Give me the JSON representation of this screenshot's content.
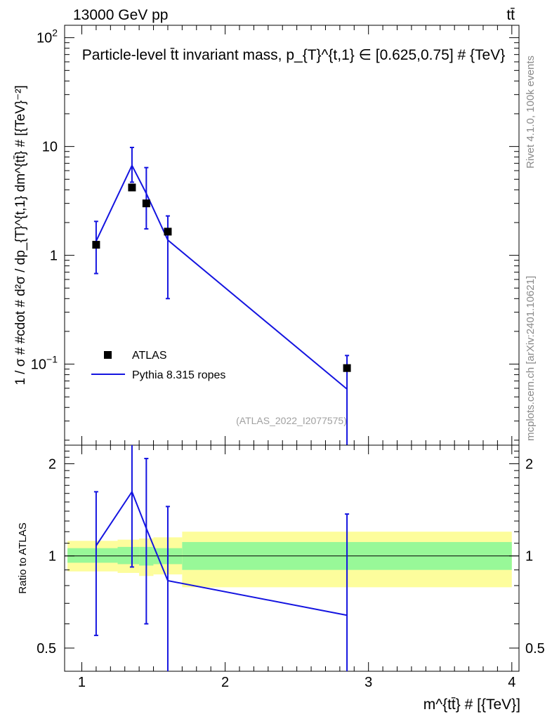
{
  "header": {
    "energy_label": "13000 GeV pp",
    "process_label": "tt̄"
  },
  "side_labels": {
    "rivet": "Rivet 4.1.0,  100k events",
    "mcplots": "mcplots.cern.ch [arXiv:2401.10621]"
  },
  "chart_data": [
    {
      "type": "scatter",
      "panel": "main",
      "title": "Particle-level t̄t invariant mass, p_{T}^{t,1} ∈ [0.625,0.75] # {TeV}",
      "xlabel": "m^{tt̄} # [{TeV}]",
      "ylabel": "1 / σ # #cdot # d²σ / dp_{T}^{t,1} dm^{tt̄} # [{TeV}⁻²]",
      "xlim": [
        0.88,
        4.05
      ],
      "ylim": [
        0.018,
        130
      ],
      "yscale": "log",
      "y_ticks": [
        {
          "value": 0.1,
          "base": "10",
          "exp": "−1"
        },
        {
          "value": 1,
          "base": "1",
          "exp": ""
        },
        {
          "value": 10,
          "base": "10",
          "exp": ""
        },
        {
          "value": 100,
          "base": "10",
          "exp": "2"
        }
      ],
      "watermark": "(ATLAS_2022_I2077575)",
      "legend": {
        "placement": "lower-left",
        "entries": [
          "ATLAS",
          "Pythia 8.315 ropes"
        ]
      },
      "series": [
        {
          "name": "ATLAS",
          "kind": "points",
          "color": "#000000",
          "x": [
            1.1,
            1.35,
            1.45,
            1.6,
            2.85
          ],
          "y": [
            1.25,
            4.2,
            3.0,
            1.65,
            0.092
          ],
          "yerr_low": [
            1.2,
            3.9,
            2.8,
            1.55,
            0.085
          ],
          "yerr_high": [
            1.3,
            4.5,
            3.2,
            1.75,
            0.099
          ]
        },
        {
          "name": "Pythia 8.315 ropes",
          "kind": "line",
          "color": "#1414e0",
          "x": [
            1.1,
            1.35,
            1.45,
            1.6,
            2.85
          ],
          "y": [
            1.35,
            6.7,
            3.7,
            1.38,
            0.059
          ],
          "yerr_low": [
            0.68,
            4.7,
            1.75,
            0.4,
            0.0001
          ],
          "yerr_high": [
            2.05,
            9.8,
            6.4,
            2.3,
            0.12
          ]
        }
      ]
    },
    {
      "type": "line",
      "panel": "ratio",
      "ylabel": "Ratio to ATLAS",
      "xlim": [
        0.88,
        4.05
      ],
      "ylim": [
        0.42,
        2.3
      ],
      "yscale": "log",
      "y_ticks": [
        0.5,
        1,
        2
      ],
      "x_ticks": [
        1,
        2,
        3,
        4
      ],
      "reference_line": 1,
      "bands": [
        {
          "x": [
            0.9,
            1.25
          ],
          "inner": [
            0.95,
            1.06
          ],
          "outer": [
            0.89,
            1.12
          ]
        },
        {
          "x": [
            1.25,
            1.4
          ],
          "inner": [
            0.94,
            1.07
          ],
          "outer": [
            0.88,
            1.13
          ]
        },
        {
          "x": [
            1.4,
            1.5
          ],
          "inner": [
            0.93,
            1.07
          ],
          "outer": [
            0.86,
            1.14
          ]
        },
        {
          "x": [
            1.5,
            1.7
          ],
          "inner": [
            0.94,
            1.06
          ],
          "outer": [
            0.87,
            1.15
          ]
        },
        {
          "x": [
            1.7,
            4.0
          ],
          "inner": [
            0.9,
            1.11
          ],
          "outer": [
            0.79,
            1.2
          ]
        }
      ],
      "series": [
        {
          "name": "Pythia 8.315 ropes / ATLAS",
          "color": "#1414e0",
          "x": [
            1.1,
            1.35,
            1.45,
            1.6,
            2.85
          ],
          "y": [
            1.08,
            1.62,
            1.23,
            0.83,
            0.64
          ],
          "yerr_low": [
            0.55,
            0.92,
            0.6,
            0.3,
            0.3
          ],
          "yerr_high": [
            1.62,
            2.32,
            2.08,
            1.45,
            1.37
          ]
        }
      ]
    }
  ],
  "colors": {
    "band_inner": "#98f898",
    "band_outer": "#fdfd9c",
    "mc_line": "#1414e0",
    "data": "#000000",
    "side_text": "#8a8a8a"
  }
}
